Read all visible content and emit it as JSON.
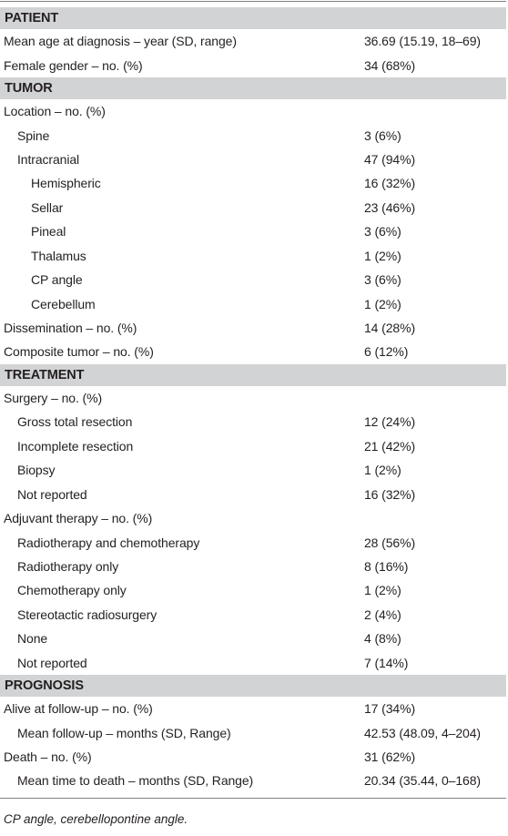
{
  "footnote": "CP angle, cerebellopontine angle.",
  "rows": [
    {
      "kind": "section",
      "label": "PATIENT"
    },
    {
      "kind": "row",
      "level": 1,
      "label": "Mean age at diagnosis – year (SD, range)",
      "value": "36.69 (15.19, 18–69)"
    },
    {
      "kind": "row",
      "level": 1,
      "label": "Female gender – no. (%)",
      "value": "34 (68%)"
    },
    {
      "kind": "section",
      "label": "TUMOR"
    },
    {
      "kind": "row",
      "level": 1,
      "label": "Location – no. (%)",
      "value": ""
    },
    {
      "kind": "row",
      "level": 2,
      "label": "Spine",
      "value": "3 (6%)"
    },
    {
      "kind": "row",
      "level": 2,
      "label": "Intracranial",
      "value": "47 (94%)"
    },
    {
      "kind": "row",
      "level": 3,
      "label": "Hemispheric",
      "value": "16 (32%)"
    },
    {
      "kind": "row",
      "level": 3,
      "label": "Sellar",
      "value": "23 (46%)"
    },
    {
      "kind": "row",
      "level": 3,
      "label": "Pineal",
      "value": "3 (6%)"
    },
    {
      "kind": "row",
      "level": 3,
      "label": "Thalamus",
      "value": "1 (2%)"
    },
    {
      "kind": "row",
      "level": 3,
      "label": "CP angle",
      "value": "3 (6%)"
    },
    {
      "kind": "row",
      "level": 3,
      "label": "Cerebellum",
      "value": "1 (2%)"
    },
    {
      "kind": "row",
      "level": 1,
      "label": "Dissemination – no. (%)",
      "value": "14 (28%)"
    },
    {
      "kind": "row",
      "level": 1,
      "label": "Composite tumor – no. (%)",
      "value": "6 (12%)"
    },
    {
      "kind": "section",
      "label": "TREATMENT"
    },
    {
      "kind": "row",
      "level": 1,
      "label": "Surgery – no. (%)",
      "value": ""
    },
    {
      "kind": "row",
      "level": 2,
      "label": "Gross total resection",
      "value": "12 (24%)"
    },
    {
      "kind": "row",
      "level": 2,
      "label": "Incomplete resection",
      "value": "21 (42%)"
    },
    {
      "kind": "row",
      "level": 2,
      "label": "Biopsy",
      "value": "1 (2%)"
    },
    {
      "kind": "row",
      "level": 2,
      "label": "Not reported",
      "value": "16 (32%)"
    },
    {
      "kind": "row",
      "level": 1,
      "label": "Adjuvant therapy – no. (%)",
      "value": ""
    },
    {
      "kind": "row",
      "level": 2,
      "label": "Radiotherapy and chemotherapy",
      "value": "28 (56%)"
    },
    {
      "kind": "row",
      "level": 2,
      "label": "Radiotherapy only",
      "value": "8 (16%)"
    },
    {
      "kind": "row",
      "level": 2,
      "label": "Chemotherapy only",
      "value": "1 (2%)"
    },
    {
      "kind": "row",
      "level": 2,
      "label": "Stereotactic radiosurgery",
      "value": "2 (4%)"
    },
    {
      "kind": "row",
      "level": 2,
      "label": "None",
      "value": "4 (8%)"
    },
    {
      "kind": "row",
      "level": 2,
      "label": "Not reported",
      "value": "7 (14%)"
    },
    {
      "kind": "section",
      "label": "PROGNOSIS"
    },
    {
      "kind": "row",
      "level": 1,
      "label": "Alive at follow-up – no. (%)",
      "value": "17 (34%)"
    },
    {
      "kind": "row",
      "level": 2,
      "label": "Mean follow-up – months (SD, Range)",
      "value": "42.53 (48.09, 4–204)"
    },
    {
      "kind": "row",
      "level": 1,
      "label": "Death – no. (%)",
      "value": "31 (62%)"
    },
    {
      "kind": "row",
      "level": 2,
      "label": "Mean time to death – months (SD, Range)",
      "value": "20.34 (35.44, 0–168)"
    }
  ]
}
